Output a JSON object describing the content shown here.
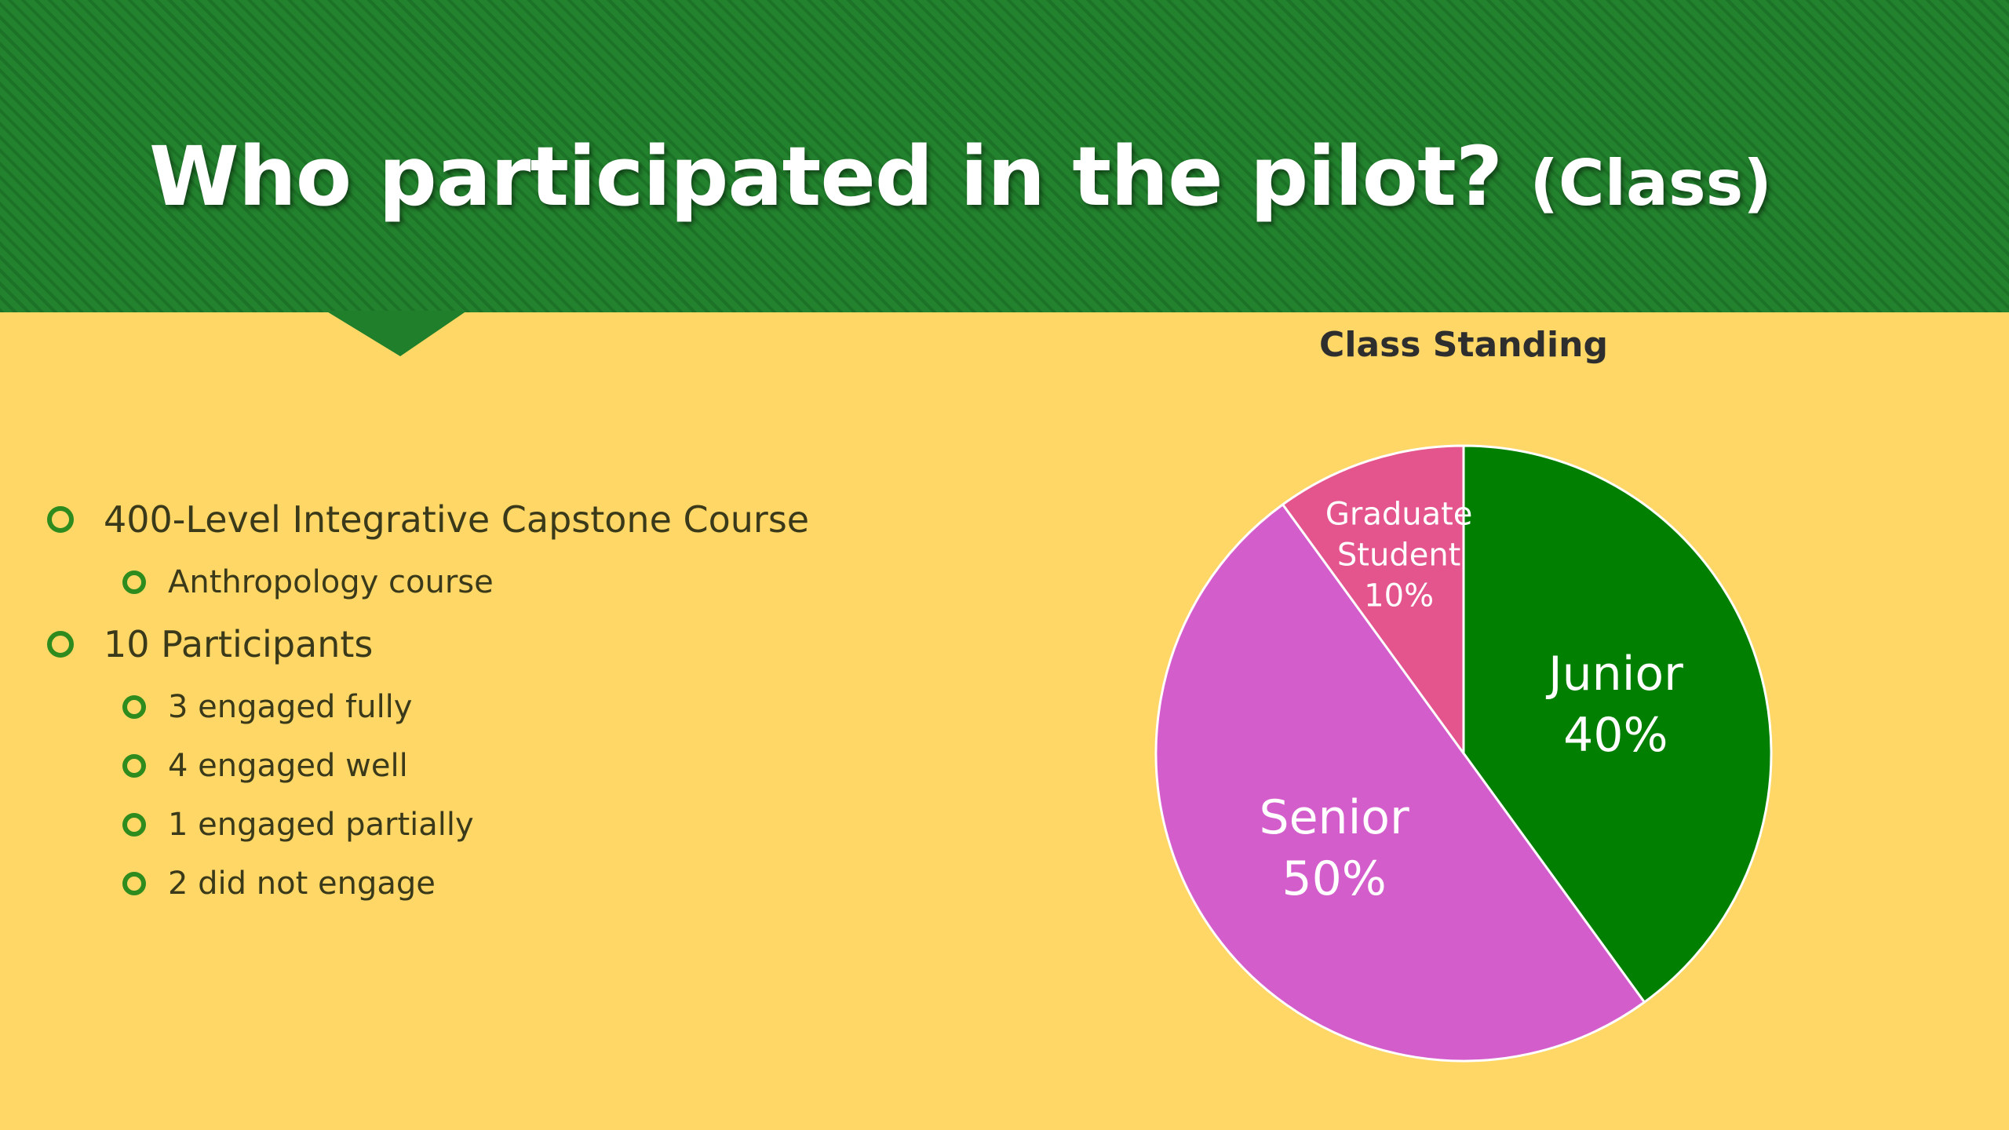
{
  "slide": {
    "title": "Who participated in the pilot?",
    "title_suffix": "(Class)",
    "bullets": [
      {
        "level": 1,
        "text": "400-Level Integrative Capstone Course"
      },
      {
        "level": 2,
        "text": "Anthropology course"
      },
      {
        "level": 1,
        "text": "10 Participants"
      },
      {
        "level": 2,
        "text": "3 engaged fully"
      },
      {
        "level": 2,
        "text": "4 engaged well"
      },
      {
        "level": 2,
        "text": "1 engaged partially"
      },
      {
        "level": 2,
        "text": "2 did not engage"
      }
    ],
    "colors": {
      "background": "#FED766",
      "banner": "#1F7F2A",
      "bullet_marker": "#2E8B1E"
    }
  },
  "chart_data": {
    "type": "pie",
    "title": "Class Standing",
    "slices": [
      {
        "label": [
          "Junior"
        ],
        "percent_label": "40%",
        "value": 40,
        "color": "#007F00"
      },
      {
        "label": [
          "Senior"
        ],
        "percent_label": "50%",
        "value": 50,
        "color": "#D45DCC"
      },
      {
        "label": [
          "Graduate",
          "Student"
        ],
        "percent_label": "10%",
        "value": 10,
        "color": "#E4548D"
      }
    ],
    "start": "12 o'clock",
    "direction": "clockwise"
  }
}
